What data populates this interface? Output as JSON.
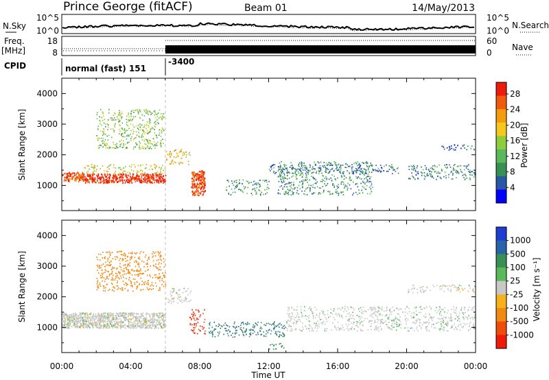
{
  "header": {
    "station": "Prince George (fitACF)",
    "beam": "Beam 01",
    "date": "14/May/2013"
  },
  "panels": {
    "sky": {
      "label": "N.Sky",
      "right_label": "N.Search",
      "ticks": [
        "10^5",
        "10^0"
      ],
      "right_ticks": [
        "10^5",
        "10^0"
      ]
    },
    "freq": {
      "label_line1": "Freq.",
      "label_line2": "[MHz]",
      "ticks": [
        "18",
        "8"
      ],
      "right_label": "Nave",
      "right_ticks": [
        "60",
        "0"
      ]
    },
    "cpid": {
      "label": "CPID",
      "mode": "normal (fast) 151",
      "switch": "-3400"
    }
  },
  "colors": {
    "power": [
      "#0000ff",
      "#2b57a8",
      "#3a8f55",
      "#5ab95a",
      "#8fcd3e",
      "#f6c71c",
      "#f59b0e",
      "#f05a0c",
      "#ee1a0a"
    ],
    "velocity": [
      "#1f3fd2",
      "#2a63a8",
      "#3a8f55",
      "#5ab95a",
      "#c8c8c8",
      "#f5b21a",
      "#f18a12",
      "#ef4d0c",
      "#ee1a0a"
    ]
  },
  "chart_data": [
    {
      "type": "heatmap",
      "name": "power",
      "ylabel": "Slant Range [km]",
      "ylim": [
        180,
        4500
      ],
      "yticks": [
        "1000",
        "2000",
        "3000",
        "4000"
      ],
      "colorbar_label": "Power [dB]",
      "colorbar_ticks": [
        "4",
        "8",
        "12",
        "16",
        "20",
        "24",
        "28"
      ],
      "colorbar_range": [
        0,
        31
      ],
      "features": [
        {
          "t0": 0.0,
          "t1": 1.2,
          "r0": 1150,
          "r1": 1450,
          "level": 26
        },
        {
          "t0": 1.2,
          "t1": 6.0,
          "r0": 1100,
          "r1": 1400,
          "level": 29
        },
        {
          "t0": 1.2,
          "t1": 6.0,
          "r0": 1400,
          "r1": 1700,
          "level": 18
        },
        {
          "t0": 2.0,
          "t1": 5.9,
          "r0": 2200,
          "r1": 3500,
          "level": 14
        },
        {
          "t0": 6.0,
          "t1": 7.5,
          "r0": 1700,
          "r1": 2200,
          "level": 20
        },
        {
          "t0": 7.5,
          "t1": 8.3,
          "r0": 700,
          "r1": 1500,
          "level": 27
        },
        {
          "t0": 9.5,
          "t1": 12.0,
          "r0": 700,
          "r1": 1200,
          "level": 10
        },
        {
          "t0": 12.0,
          "t1": 19.5,
          "r0": 1400,
          "r1": 1700,
          "level": 7
        },
        {
          "t0": 12.5,
          "t1": 18.0,
          "r0": 700,
          "r1": 1800,
          "level": 9
        },
        {
          "t0": 20.0,
          "t1": 24.0,
          "r0": 1200,
          "r1": 1700,
          "level": 8
        },
        {
          "t0": 22.0,
          "t1": 24.0,
          "r0": 2150,
          "r1": 2350,
          "level": 6
        }
      ]
    },
    {
      "type": "heatmap",
      "name": "velocity",
      "ylabel": "Slant Range [km]",
      "xlabel": "Time UT",
      "ylim": [
        180,
        4500
      ],
      "yticks": [
        "1000",
        "2000",
        "3000",
        "4000"
      ],
      "xticks": [
        "00:00",
        "04:00",
        "08:00",
        "12:00",
        "16:00",
        "20:00",
        "00:00"
      ],
      "xlim_hours": [
        0,
        24
      ],
      "colorbar_label": "Velocity [m s⁻¹]",
      "colorbar_ticks": [
        "1000",
        "500",
        "100",
        "25",
        "-25",
        "-100",
        "-500",
        "-1000"
      ],
      "features": [
        {
          "t0": 0.0,
          "t1": 6.0,
          "r0": 1000,
          "r1": 1500,
          "level": 0
        },
        {
          "t0": 2.0,
          "t1": 6.0,
          "r0": 2200,
          "r1": 3500,
          "level": -150
        },
        {
          "t0": 6.0,
          "t1": 7.5,
          "r0": 1800,
          "r1": 2300,
          "level": 0
        },
        {
          "t0": 7.4,
          "t1": 8.3,
          "r0": 800,
          "r1": 1600,
          "level": -900
        },
        {
          "t0": 8.5,
          "t1": 13.0,
          "r0": 700,
          "r1": 1200,
          "level": 300
        },
        {
          "t0": 12.0,
          "t1": 13.0,
          "r0": 300,
          "r1": 500,
          "level": 150
        },
        {
          "t0": 13.0,
          "t1": 24.0,
          "r0": 900,
          "r1": 1700,
          "level": 5
        },
        {
          "t0": 20.0,
          "t1": 24.0,
          "r0": 2150,
          "r1": 2400,
          "level": 0
        }
      ]
    }
  ],
  "xaxis": {
    "label": "Time UT"
  }
}
